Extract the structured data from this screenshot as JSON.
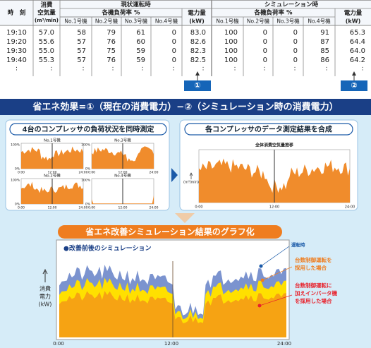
{
  "table": {
    "header": {
      "time": "時　刻",
      "air": [
        "消費",
        "空気量",
        "(m³/min)"
      ],
      "current": "現状運転時",
      "simulation": "シミュレーション時",
      "load": "各機負荷率 %",
      "units": [
        "No.1号機",
        "No.2号機",
        "No.3号機",
        "No.4号機"
      ],
      "power": [
        "電力量",
        "(kW)"
      ]
    },
    "rows": [
      [
        "19:10",
        "57.0",
        "58",
        "79",
        "61",
        "0",
        "83.0",
        "100",
        "0",
        "0",
        "91",
        "65.3"
      ],
      [
        "19:20",
        "55.6",
        "57",
        "76",
        "60",
        "0",
        "82.6",
        "100",
        "0",
        "0",
        "87",
        "64.4"
      ],
      [
        "19:30",
        "55.0",
        "57",
        "75",
        "59",
        "0",
        "82.3",
        "100",
        "0",
        "0",
        "85",
        "64.0"
      ],
      [
        "19:40",
        "55.3",
        "57",
        "76",
        "59",
        "0",
        "82.5",
        "100",
        "0",
        "0",
        "86",
        "64.2"
      ]
    ],
    "ellipsis": ":",
    "markers": [
      "①",
      "②"
    ]
  },
  "banner": "省エネ効果=①（現在の消費電力）−②（シミュレーション時の消費電力）",
  "left_panel": {
    "title": "4台のコンプレッサの負荷状況を同時測定",
    "charts": [
      "No.1号機",
      "No.3号機",
      "No.2号機",
      "No.4号機"
    ],
    "y_labels": [
      "100%",
      "0%"
    ],
    "x_labels": [
      "0:00",
      "12:00",
      "24:00"
    ]
  },
  "right_panel": {
    "title": "各コンプレッサのデータ測定結果を合成",
    "chart_title": "全体消費空気量推移",
    "y_label": "(m³/min)",
    "x_labels": [
      "0:00",
      "12:00",
      "24:00"
    ]
  },
  "result": {
    "title": "省エネ改善シミュレーション結果のグラフ化",
    "legend": "●改善前後のシミュレーション",
    "current_label": "運転時",
    "count_control_label": [
      "台数制御運転を",
      "採用した場合"
    ],
    "inverter_label": [
      "台数制御運転に",
      "加えインバータ機",
      "を採用した場合"
    ],
    "y_label": [
      "消費",
      "電力",
      "(kW)"
    ],
    "x_labels": [
      "0:00",
      "12:00",
      "24:00"
    ]
  }
}
